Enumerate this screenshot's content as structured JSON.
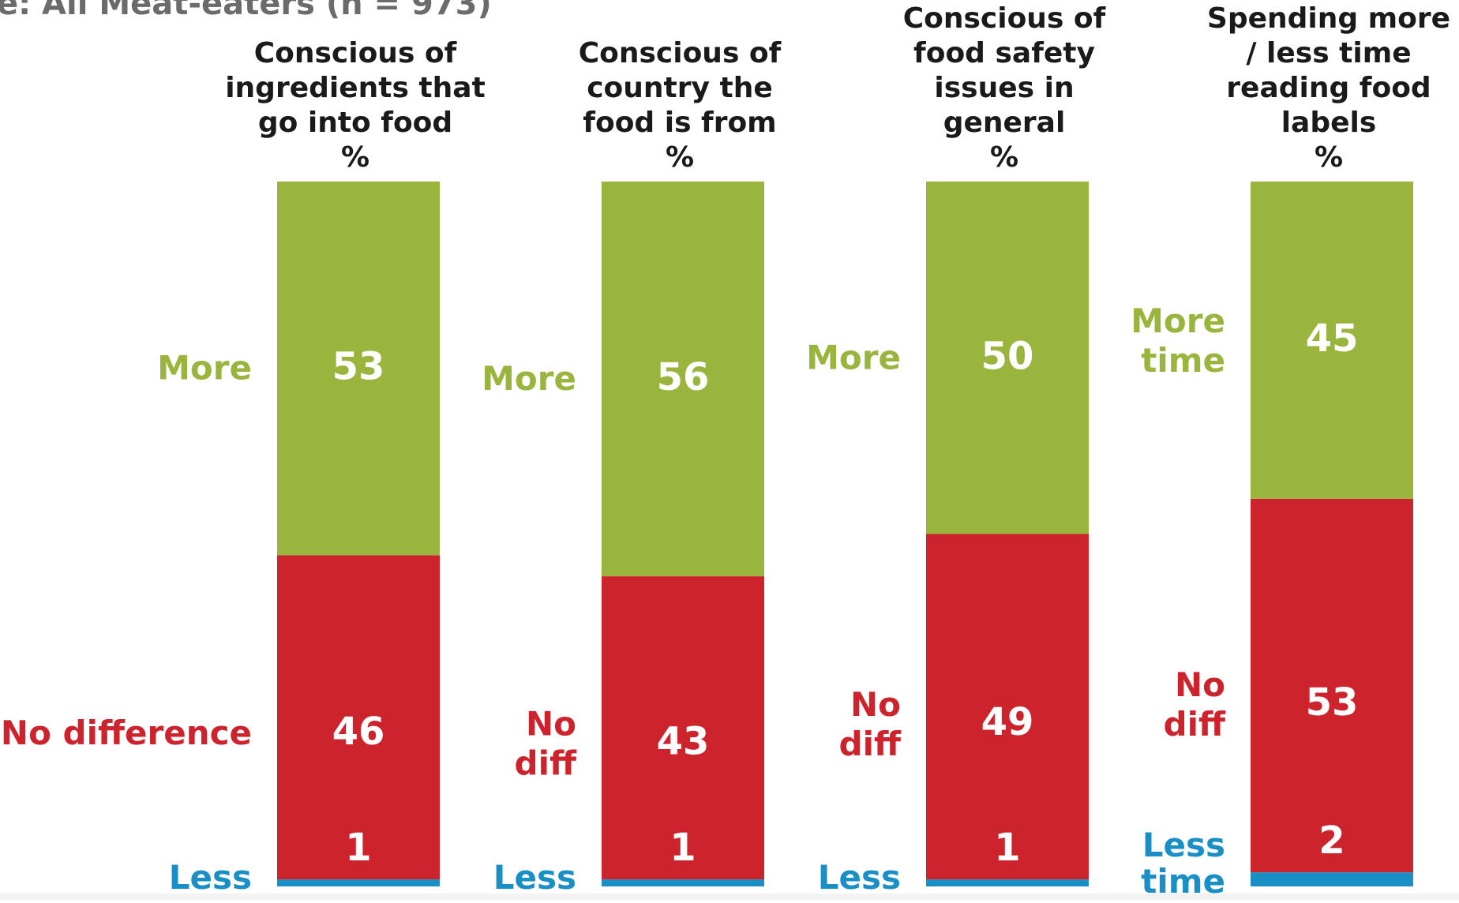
{
  "subtitle": "e: All Meat-eaters (n = 973)",
  "colors": {
    "more": "#9ab53e",
    "no_difference": "#cd232d",
    "less": "#1a8fc6",
    "heading": "#1a1a1a",
    "subtitle": "#6b6b6b",
    "value_text": "#ffffff"
  },
  "chart_data": {
    "type": "bar",
    "stacked": true,
    "unit": "%",
    "categories": [
      "Conscious of ingredients that go into food",
      "Conscious of country the food is from",
      "Conscious of food safety issues in general",
      "Spending more / less time reading food labels"
    ],
    "series": [
      {
        "name": "Less",
        "values": [
          1,
          1,
          1,
          2
        ]
      },
      {
        "name": "No difference",
        "values": [
          46,
          43,
          49,
          53
        ]
      },
      {
        "name": "More",
        "values": [
          53,
          56,
          50,
          45
        ]
      }
    ],
    "ylim": [
      0,
      100
    ],
    "legend": "inline-left",
    "grid": false
  },
  "columns": [
    {
      "heading_lines": [
        "Conscious of",
        "ingredients that",
        "go into food",
        "%"
      ],
      "labels": {
        "more": [
          "More"
        ],
        "no_difference": [
          "No difference"
        ],
        "less": [
          "Less"
        ]
      }
    },
    {
      "heading_lines": [
        "Conscious of",
        "country the",
        "food is from",
        "%"
      ],
      "labels": {
        "more": [
          "More"
        ],
        "no_difference": [
          "No",
          "diff"
        ],
        "less": [
          "Less"
        ]
      }
    },
    {
      "heading_lines": [
        "Conscious of",
        "food safety",
        "issues in",
        "general",
        "%"
      ],
      "labels": {
        "more": [
          "More"
        ],
        "no_difference": [
          "No",
          "diff"
        ],
        "less": [
          "Less"
        ]
      }
    },
    {
      "heading_lines": [
        "Spending more",
        "/ less time",
        "reading food",
        "labels",
        "%"
      ],
      "labels": {
        "more": [
          "More",
          "time"
        ],
        "no_difference": [
          "No",
          "diff"
        ],
        "less": [
          "Less",
          "time"
        ]
      }
    }
  ]
}
